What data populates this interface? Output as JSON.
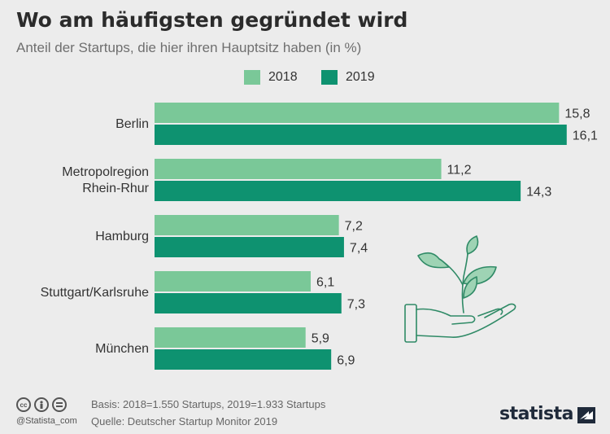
{
  "header": {
    "title": "Wo am häufigsten gegründet wird",
    "subtitle": "Anteil der Startups, die hier ihren Hauptsitz haben (in %)"
  },
  "colors": {
    "series_2018": "#7ac898",
    "series_2019": "#0e9270",
    "text": "#333333",
    "background": "#ececec"
  },
  "chart_data": {
    "type": "bar",
    "orientation": "horizontal",
    "title": "Wo am häufigsten gegründet wird",
    "subtitle": "Anteil der Startups, die hier ihren Hauptsitz haben (in %)",
    "categories": [
      [
        "Berlin"
      ],
      [
        "Metropolregion",
        "Rhein-Rhur"
      ],
      [
        "Hamburg"
      ],
      [
        "Stuttgart/Karlsruhe"
      ],
      [
        "München"
      ]
    ],
    "series": [
      {
        "name": "2018",
        "values": [
          15.8,
          11.2,
          7.2,
          6.1,
          5.9
        ],
        "labels": [
          "15,8",
          "11,2",
          "7,2",
          "6,1",
          "5,9"
        ]
      },
      {
        "name": "2019",
        "values": [
          16.1,
          14.3,
          7.4,
          7.3,
          6.9
        ],
        "labels": [
          "16,1",
          "14,3",
          "7,4",
          "7,3",
          "6,9"
        ]
      }
    ],
    "xlim": [
      0,
      17.6
    ],
    "grid": false,
    "legend_position": "top-center"
  },
  "footer": {
    "handle": "@Statista_com",
    "basis": "Basis: 2018=1.550 Startups, 2019=1.933 Startups",
    "source": "Quelle: Deutscher Startup Monitor 2019",
    "brand": "statista",
    "license_icons": [
      "cc-icon",
      "by-icon",
      "nd-icon"
    ]
  },
  "illustration": {
    "icon": "plant-in-hand-icon"
  }
}
